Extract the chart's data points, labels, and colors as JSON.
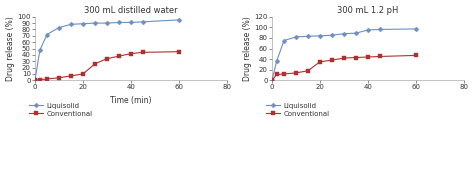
{
  "plot1": {
    "title": "300 mL distilled water",
    "liquisolid_x": [
      0,
      2,
      5,
      10,
      15,
      20,
      25,
      30,
      35,
      40,
      45,
      60
    ],
    "liquisolid_y": [
      0,
      47,
      72,
      83,
      88,
      89,
      90,
      90,
      91,
      91,
      92,
      95
    ],
    "conventional_x": [
      0,
      2,
      5,
      10,
      15,
      20,
      25,
      30,
      35,
      40,
      45,
      60
    ],
    "conventional_y": [
      0,
      1,
      2,
      4,
      7,
      10,
      26,
      34,
      38,
      42,
      44,
      45
    ],
    "xlabel": "Time (min)",
    "ylabel": "Drug release (%)",
    "ylim": [
      0,
      100
    ],
    "xlim": [
      0,
      80
    ],
    "yticks": [
      0,
      10,
      20,
      30,
      40,
      50,
      60,
      70,
      80,
      90,
      100
    ],
    "xticks": [
      0,
      20,
      40,
      60,
      80
    ]
  },
  "plot2": {
    "title": "300 mL 1.2 pH",
    "liquisolid_x": [
      0,
      2,
      5,
      10,
      15,
      20,
      25,
      30,
      35,
      40,
      45,
      60
    ],
    "liquisolid_y": [
      0,
      37,
      75,
      82,
      83,
      84,
      85,
      88,
      89,
      95,
      96,
      97
    ],
    "conventional_x": [
      0,
      2,
      5,
      10,
      15,
      20,
      25,
      30,
      35,
      40,
      45,
      60
    ],
    "conventional_y": [
      0,
      11,
      12,
      14,
      18,
      35,
      38,
      42,
      43,
      44,
      45,
      47
    ],
    "xlabel": "",
    "ylabel": "Drug release (%)",
    "ylim": [
      0,
      120
    ],
    "xlim": [
      0,
      80
    ],
    "yticks": [
      0,
      20,
      40,
      60,
      80,
      100,
      120
    ],
    "xticks": [
      0,
      20,
      40,
      60,
      80
    ]
  },
  "liquisolid_color": "#6e8fbf",
  "conventional_color": "#b03030",
  "liquisolid_label": "Liquisolid",
  "conventional_label": "Conventional",
  "bg_color": "#ffffff",
  "fig_bg_color": "#ffffff",
  "font_size": 5.5,
  "title_font_size": 6.0
}
